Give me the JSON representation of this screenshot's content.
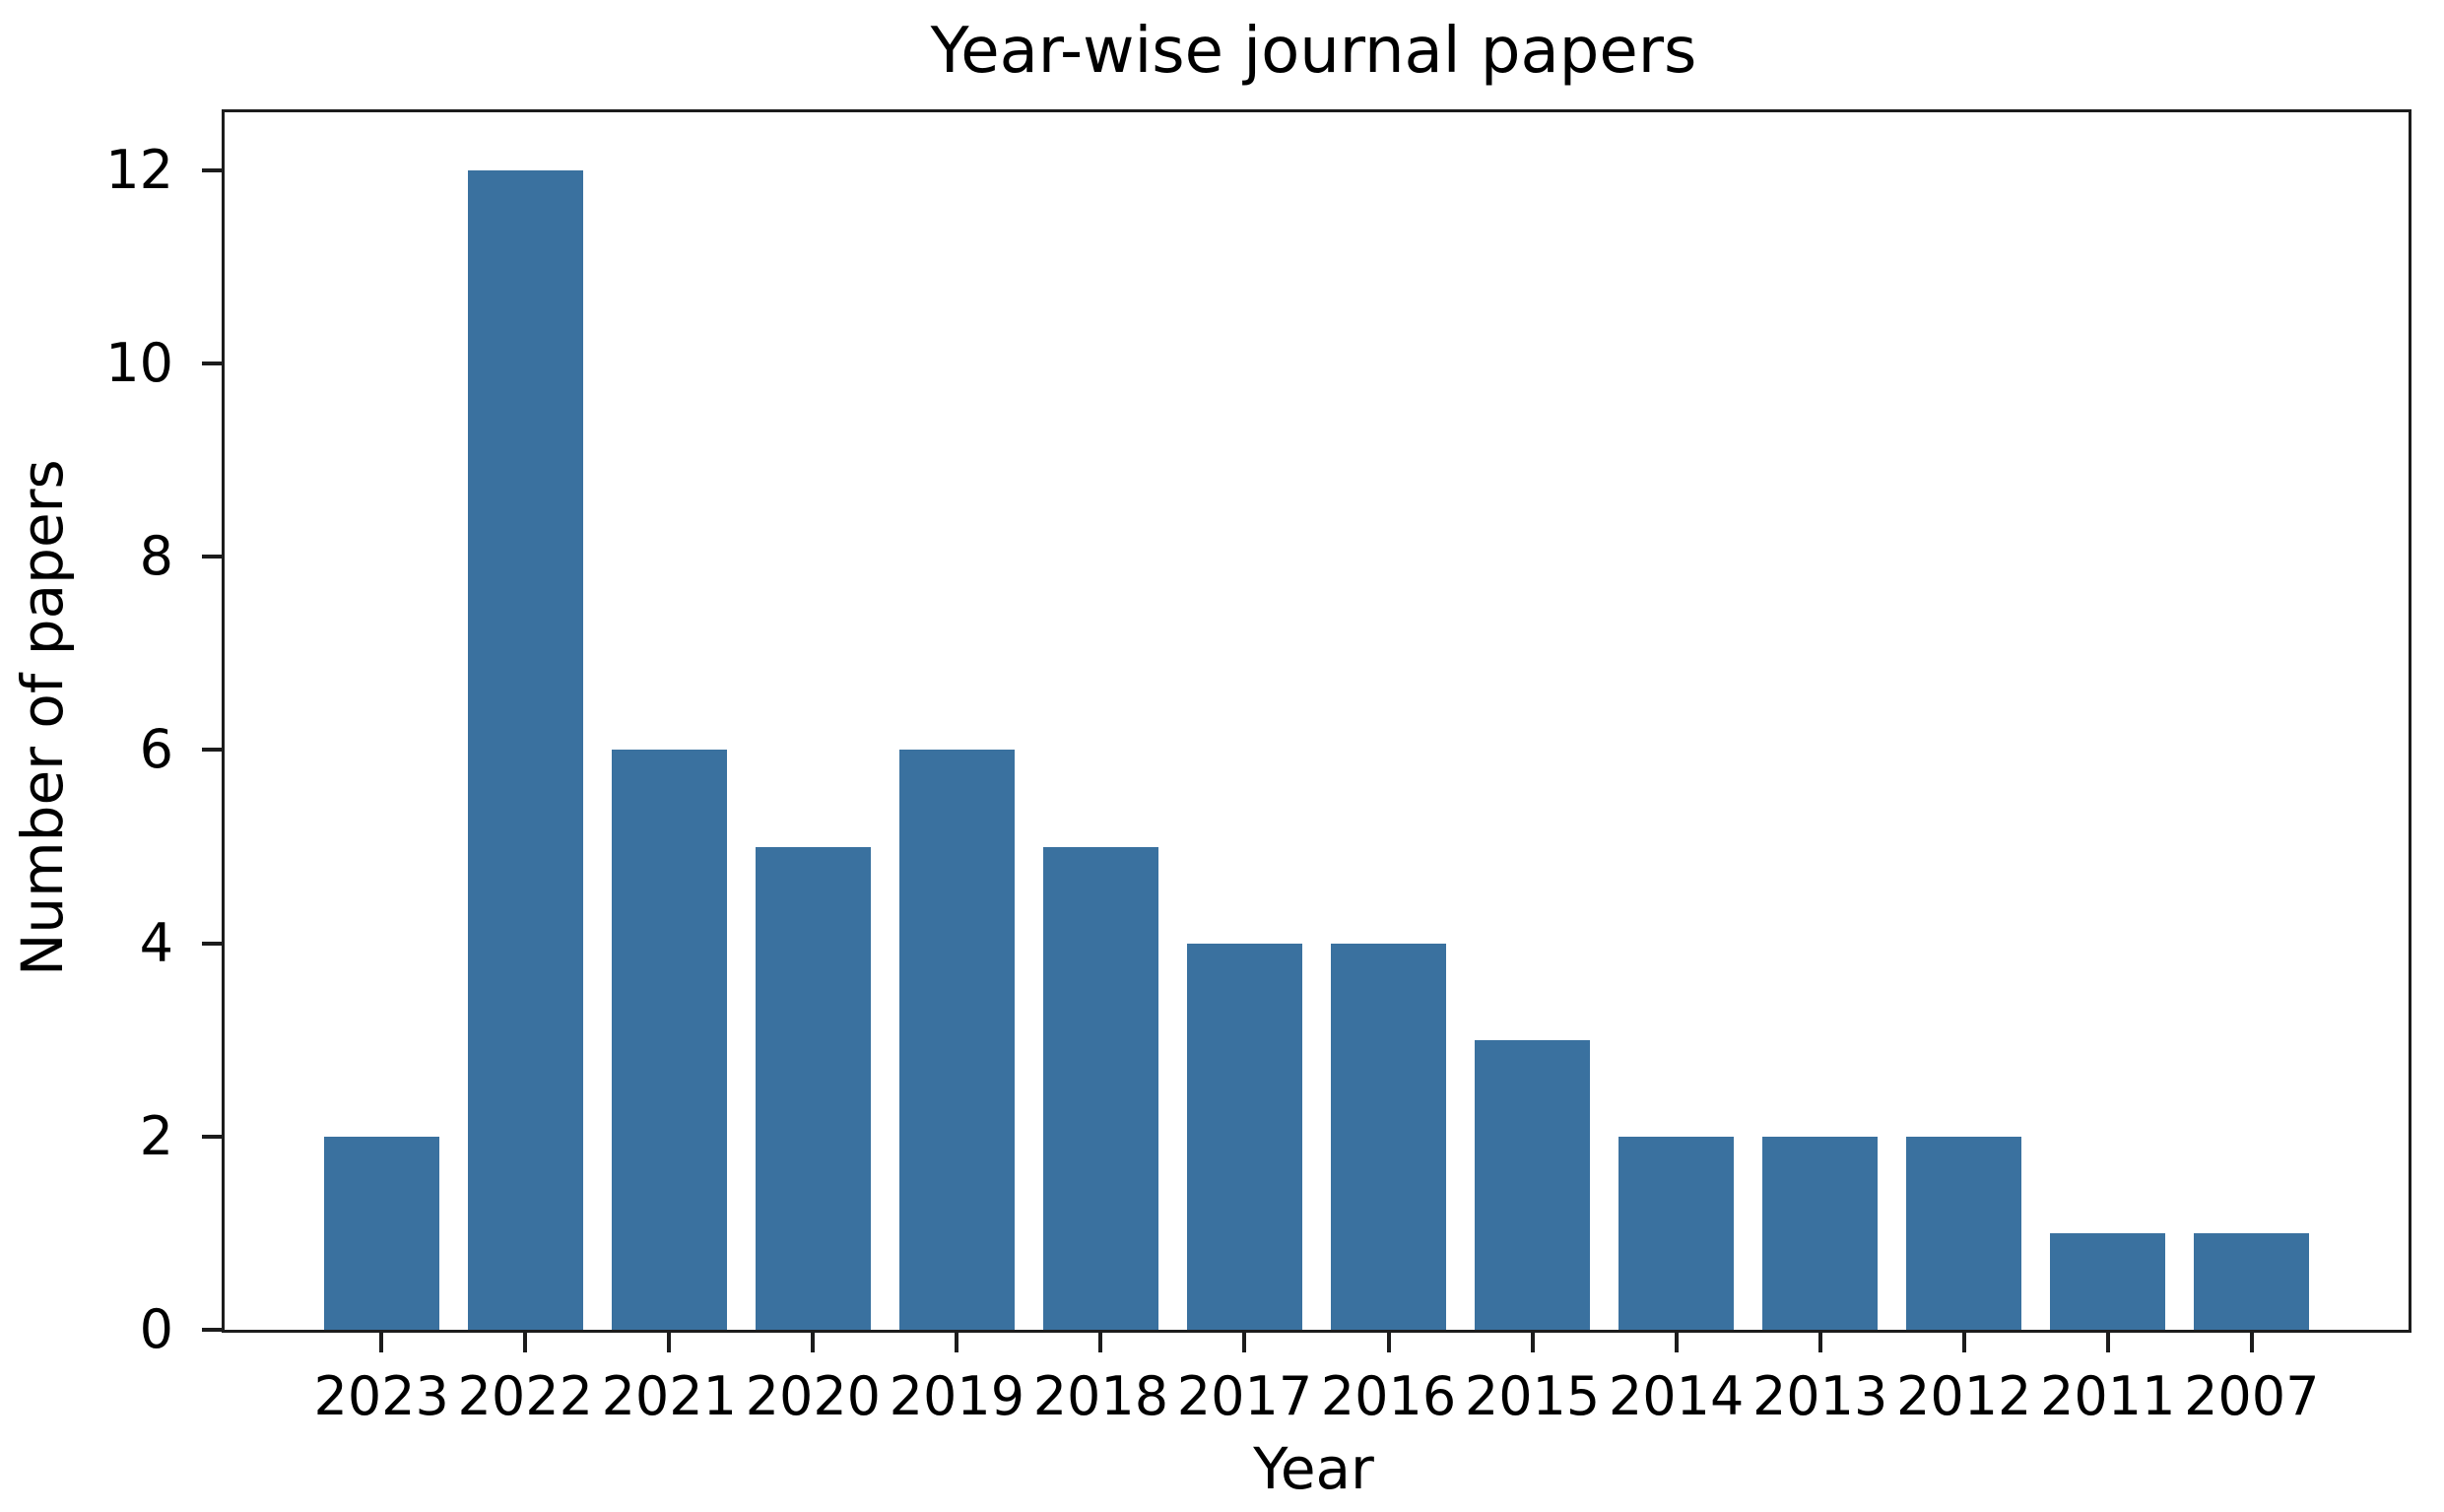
{
  "chart_data": {
    "type": "bar",
    "title": "Year-wise journal papers",
    "xlabel": "Year",
    "ylabel": "Number of papers",
    "categories": [
      "2023",
      "2022",
      "2021",
      "2020",
      "2019",
      "2018",
      "2017",
      "2016",
      "2015",
      "2014",
      "2013",
      "2012",
      "2011",
      "2007"
    ],
    "values": [
      2,
      12,
      6,
      5,
      6,
      5,
      4,
      4,
      3,
      2,
      2,
      2,
      1,
      1
    ],
    "yticks": [
      0,
      2,
      4,
      6,
      8,
      10,
      12
    ],
    "ylim": [
      0,
      12.6
    ],
    "xlim": [
      -1.09,
      14.09
    ],
    "bar_width": 0.8,
    "grid": false,
    "legend": null,
    "colors": {
      "bar": "#3A719F",
      "axis": "#1c1c1c",
      "text": "#000000",
      "background": "#ffffff"
    }
  }
}
